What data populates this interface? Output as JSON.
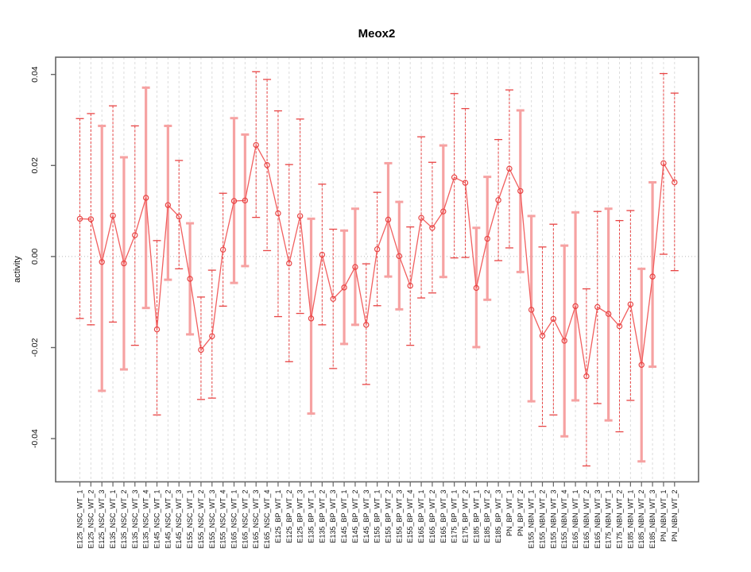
{
  "chart_data": {
    "type": "scatter",
    "subtype": "point-range-errorbars",
    "title": "Meox2",
    "xlabel": "",
    "ylabel": "activity",
    "grid": "vertical-dashed-per-category, dotted zero line",
    "legend_position": "none",
    "ylim": [
      -0.0495,
      0.0441
    ],
    "y_ticks": [
      0.04,
      0.02,
      0.0,
      -0.02,
      -0.04
    ],
    "y_tick_labels": [
      "0.04",
      "0.02",
      "0.00",
      "-0.02",
      "-0.04"
    ],
    "colors": {
      "point": "#e84545",
      "series_line": "#f15f5f",
      "errorbar_thin": "#e84545",
      "errorbar_thick": "#f6a2a2",
      "gridline": "#dcdcdc",
      "zero_line": "#b8b8b8",
      "axis": "#666666",
      "text": "#111111"
    },
    "points": [
      {
        "label": "E125_NSC_WT_1",
        "mean": 0.0083,
        "lo": -0.0136,
        "hi": 0.0303,
        "thick": false
      },
      {
        "label": "E125_NSC_WT_2",
        "mean": 0.0082,
        "lo": -0.015,
        "hi": 0.0314,
        "thick": false
      },
      {
        "label": "E125_NSC_WT_3",
        "mean": -0.0012,
        "lo": -0.0295,
        "hi": 0.0287,
        "thick": true
      },
      {
        "label": "E135_NSC_WT_1",
        "mean": 0.009,
        "lo": -0.0144,
        "hi": 0.0331,
        "thick": false
      },
      {
        "label": "E135_NSC_WT_2",
        "mean": -0.0015,
        "lo": -0.0248,
        "hi": 0.0218,
        "thick": true
      },
      {
        "label": "E135_NSC_WT_3",
        "mean": 0.0047,
        "lo": -0.0195,
        "hi": 0.0287,
        "thick": false
      },
      {
        "label": "E135_NSC_WT_4",
        "mean": 0.0129,
        "lo": -0.0113,
        "hi": 0.0371,
        "thick": true
      },
      {
        "label": "E145_NSC_WT_1",
        "mean": -0.016,
        "lo": -0.0348,
        "hi": 0.0035,
        "thick": false
      },
      {
        "label": "E145_NSC_WT_2",
        "mean": 0.0113,
        "lo": -0.0051,
        "hi": 0.0287,
        "thick": true
      },
      {
        "label": "E145_NSC_WT_3",
        "mean": 0.0088,
        "lo": -0.0027,
        "hi": 0.0211,
        "thick": false
      },
      {
        "label": "E155_NSC_WT_1",
        "mean": -0.0049,
        "lo": -0.0171,
        "hi": 0.0073,
        "thick": true
      },
      {
        "label": "E155_NSC_WT_2",
        "mean": -0.0205,
        "lo": -0.0314,
        "hi": -0.0089,
        "thick": false
      },
      {
        "label": "E155_NSC_WT_3",
        "mean": -0.0175,
        "lo": -0.0311,
        "hi": -0.003,
        "thick": false
      },
      {
        "label": "E155_NSC_WT_4",
        "mean": 0.0015,
        "lo": -0.0109,
        "hi": 0.0139,
        "thick": false
      },
      {
        "label": "E165_NSC_WT_1",
        "mean": 0.0122,
        "lo": -0.0058,
        "hi": 0.0304,
        "thick": true
      },
      {
        "label": "E165_NSC_WT_2",
        "mean": 0.0123,
        "lo": -0.0021,
        "hi": 0.0268,
        "thick": true
      },
      {
        "label": "E165_NSC_WT_3",
        "mean": 0.0245,
        "lo": 0.0086,
        "hi": 0.0406,
        "thick": false
      },
      {
        "label": "E165_NSC_WT_4",
        "mean": 0.0201,
        "lo": 0.0013,
        "hi": 0.0389,
        "thick": false
      },
      {
        "label": "E125_BP_WT_1",
        "mean": 0.0095,
        "lo": -0.0132,
        "hi": 0.032,
        "thick": false
      },
      {
        "label": "E125_BP_WT_2",
        "mean": -0.0015,
        "lo": -0.0231,
        "hi": 0.0202,
        "thick": false
      },
      {
        "label": "E125_BP_WT_3",
        "mean": 0.0089,
        "lo": -0.0125,
        "hi": 0.0302,
        "thick": false
      },
      {
        "label": "E135_BP_WT_1",
        "mean": -0.0136,
        "lo": -0.0345,
        "hi": 0.0083,
        "thick": true
      },
      {
        "label": "E135_BP_WT_2",
        "mean": 0.0004,
        "lo": -0.015,
        "hi": 0.0159,
        "thick": false
      },
      {
        "label": "E135_BP_WT_3",
        "mean": -0.0093,
        "lo": -0.0246,
        "hi": 0.006,
        "thick": false
      },
      {
        "label": "E145_BP_WT_1",
        "mean": -0.0068,
        "lo": -0.0192,
        "hi": 0.0057,
        "thick": true
      },
      {
        "label": "E145_BP_WT_2",
        "mean": -0.0023,
        "lo": -0.015,
        "hi": 0.0105,
        "thick": true
      },
      {
        "label": "E145_BP_WT_3",
        "mean": -0.015,
        "lo": -0.0281,
        "hi": -0.0016,
        "thick": false
      },
      {
        "label": "E155_BP_WT_1",
        "mean": 0.0016,
        "lo": -0.0108,
        "hi": 0.0141,
        "thick": false
      },
      {
        "label": "E155_BP_WT_2",
        "mean": 0.0081,
        "lo": -0.0044,
        "hi": 0.0205,
        "thick": true
      },
      {
        "label": "E155_BP_WT_3",
        "mean": 0.0001,
        "lo": -0.0116,
        "hi": 0.012,
        "thick": true
      },
      {
        "label": "E155_BP_WT_4",
        "mean": -0.0064,
        "lo": -0.0195,
        "hi": 0.0065,
        "thick": false
      },
      {
        "label": "E165_BP_WT_1",
        "mean": 0.0085,
        "lo": -0.0091,
        "hi": 0.0263,
        "thick": false
      },
      {
        "label": "E165_BP_WT_2",
        "mean": 0.0063,
        "lo": -0.008,
        "hi": 0.0207,
        "thick": false
      },
      {
        "label": "E165_BP_WT_3",
        "mean": 0.0099,
        "lo": -0.0045,
        "hi": 0.0244,
        "thick": true
      },
      {
        "label": "E175_BP_WT_1",
        "mean": 0.0174,
        "lo": -0.0003,
        "hi": 0.0358,
        "thick": false
      },
      {
        "label": "E175_BP_WT_2",
        "mean": 0.0162,
        "lo": -0.0002,
        "hi": 0.0325,
        "thick": false
      },
      {
        "label": "E185_BP_WT_1",
        "mean": -0.0069,
        "lo": -0.0199,
        "hi": 0.0063,
        "thick": true
      },
      {
        "label": "E185_BP_WT_2",
        "mean": 0.0039,
        "lo": -0.0095,
        "hi": 0.0175,
        "thick": true
      },
      {
        "label": "E185_BP_WT_3",
        "mean": 0.0124,
        "lo": -0.0009,
        "hi": 0.0257,
        "thick": false
      },
      {
        "label": "PN_BP_WT_1",
        "mean": 0.0193,
        "lo": 0.0019,
        "hi": 0.0366,
        "thick": false
      },
      {
        "label": "PN_BP_WT_2",
        "mean": 0.0144,
        "lo": -0.0034,
        "hi": 0.0321,
        "thick": true
      },
      {
        "label": "E155_NBN_WT_1",
        "mean": -0.0117,
        "lo": -0.0318,
        "hi": 0.0089,
        "thick": true
      },
      {
        "label": "E155_NBN_WT_2",
        "mean": -0.0174,
        "lo": -0.0373,
        "hi": 0.0021,
        "thick": false
      },
      {
        "label": "E155_NBN_WT_3",
        "mean": -0.0137,
        "lo": -0.0348,
        "hi": 0.0071,
        "thick": false
      },
      {
        "label": "E155_NBN_WT_4",
        "mean": -0.0185,
        "lo": -0.0395,
        "hi": 0.0024,
        "thick": true
      },
      {
        "label": "E165_NBN_WT_1",
        "mean": -0.0109,
        "lo": -0.0316,
        "hi": 0.0097,
        "thick": true
      },
      {
        "label": "E165_NBN_WT_2",
        "mean": -0.0263,
        "lo": -0.046,
        "hi": -0.0071,
        "thick": false
      },
      {
        "label": "E165_NBN_WT_3",
        "mean": -0.0111,
        "lo": -0.0323,
        "hi": 0.0099,
        "thick": false
      },
      {
        "label": "E175_NBN_WT_1",
        "mean": -0.0126,
        "lo": -0.036,
        "hi": 0.0105,
        "thick": true
      },
      {
        "label": "E175_NBN_WT_2",
        "mean": -0.0153,
        "lo": -0.0385,
        "hi": 0.0079,
        "thick": false
      },
      {
        "label": "E185_NBN_WT_1",
        "mean": -0.0105,
        "lo": -0.0316,
        "hi": 0.0101,
        "thick": false
      },
      {
        "label": "E185_NBN_WT_2",
        "mean": -0.0238,
        "lo": -0.045,
        "hi": -0.0027,
        "thick": true
      },
      {
        "label": "E185_NBN_WT_3",
        "mean": -0.0044,
        "lo": -0.0242,
        "hi": 0.0163,
        "thick": true
      },
      {
        "label": "PN_NBN_WT_1",
        "mean": 0.0205,
        "lo": 0.0005,
        "hi": 0.0402,
        "thick": false
      },
      {
        "label": "PN_NBN_WT_2",
        "mean": 0.0163,
        "lo": -0.0031,
        "hi": 0.0359,
        "thick": false
      }
    ]
  }
}
